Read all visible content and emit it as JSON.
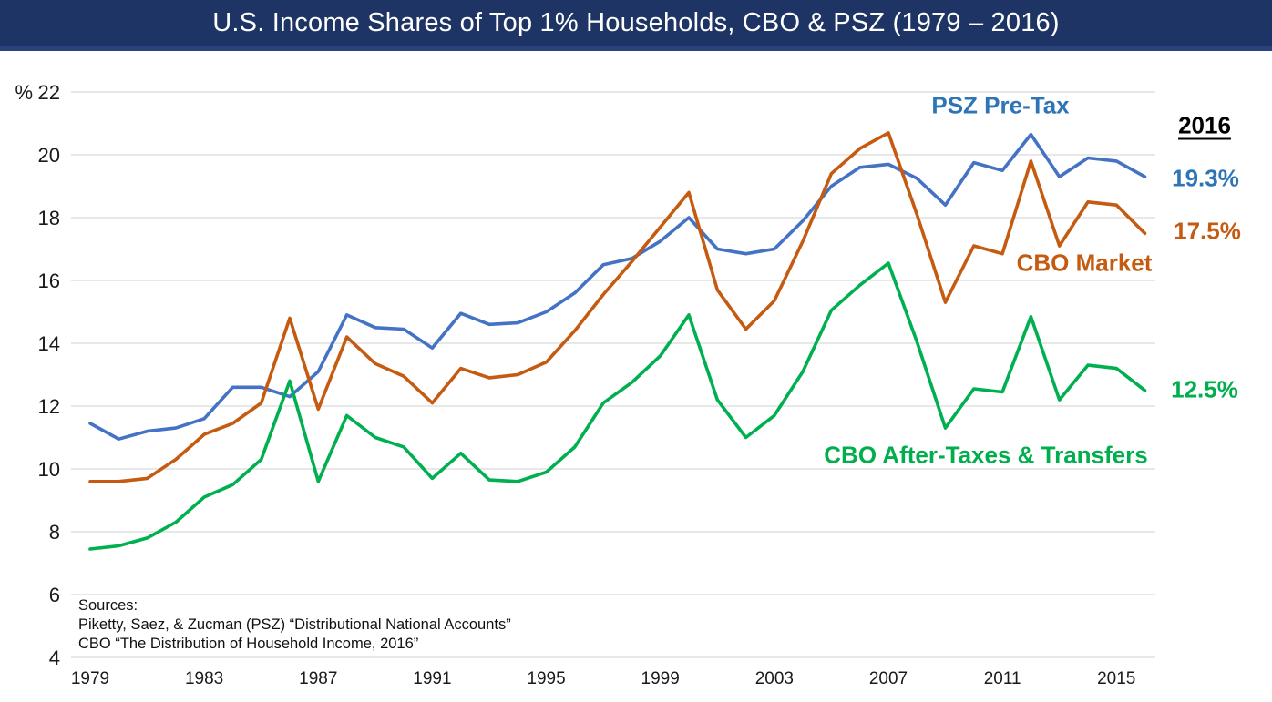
{
  "slide": {
    "title": "U.S. Income Shares of Top 1% Households, CBO & PSZ (1979 – 2016)",
    "title_bar_bg": "#1e3464"
  },
  "chart_data": {
    "type": "line",
    "title": "U.S. Income Shares of Top 1% Households, CBO & PSZ (1979 – 2016)",
    "ylabel": "%",
    "ylim": [
      4,
      22
    ],
    "yticks": [
      22,
      20,
      18,
      16,
      14,
      12,
      10,
      8,
      6,
      4
    ],
    "xticks": [
      1979,
      1983,
      1987,
      1991,
      1995,
      1999,
      2003,
      2007,
      2011,
      2015
    ],
    "x_range": [
      1979,
      2016
    ],
    "grid": true,
    "gridline_color": "#d9d9d9",
    "legend_position": "inline-annotations",
    "end_year_label": "2016",
    "series": [
      {
        "name": "PSZ Pre-Tax",
        "color": "#4472C4",
        "label_color": "#2E75B6",
        "end_label": "19.3%",
        "values": [
          11.45,
          10.95,
          11.2,
          11.3,
          11.6,
          12.6,
          12.6,
          12.3,
          13.1,
          14.9,
          14.5,
          14.45,
          13.85,
          14.95,
          14.6,
          14.65,
          15.0,
          15.6,
          16.5,
          16.7,
          17.25,
          18.0,
          17.0,
          16.85,
          17.0,
          17.9,
          19.0,
          19.6,
          19.7,
          19.25,
          18.4,
          19.75,
          19.5,
          20.65,
          19.3,
          19.9,
          19.8,
          19.3
        ]
      },
      {
        "name": "CBO Market",
        "color": "#C55A11",
        "label_color": "#C55A11",
        "end_label": "17.5%",
        "values": [
          9.6,
          9.6,
          9.7,
          10.3,
          11.1,
          11.45,
          12.1,
          14.8,
          11.9,
          14.2,
          13.35,
          12.95,
          12.1,
          13.2,
          12.9,
          13.0,
          13.4,
          14.4,
          15.55,
          16.6,
          17.7,
          18.8,
          15.7,
          14.45,
          15.35,
          17.25,
          19.4,
          20.2,
          20.7,
          18.1,
          15.3,
          17.1,
          16.85,
          19.8,
          17.1,
          18.5,
          18.4,
          17.5
        ]
      },
      {
        "name": "CBO After-Taxes & Transfers",
        "color": "#00B050",
        "label_color": "#00AE4D",
        "end_label": "12.5%",
        "values": [
          7.45,
          7.55,
          7.8,
          8.3,
          9.1,
          9.5,
          10.3,
          12.8,
          9.6,
          11.7,
          11.0,
          10.7,
          9.7,
          10.5,
          9.65,
          9.6,
          9.9,
          10.7,
          12.1,
          12.75,
          13.6,
          14.9,
          12.2,
          11.0,
          11.7,
          13.1,
          15.05,
          15.85,
          16.55,
          14.05,
          11.3,
          12.55,
          12.45,
          14.85,
          12.2,
          13.3,
          13.2,
          12.5
        ]
      }
    ]
  },
  "sources": {
    "heading": "Sources:",
    "psz": "Piketty, Saez, & Zucman (PSZ) “Distributional National Accounts”",
    "cbo": "CBO “The Distribution of Household Income, 2016”"
  }
}
